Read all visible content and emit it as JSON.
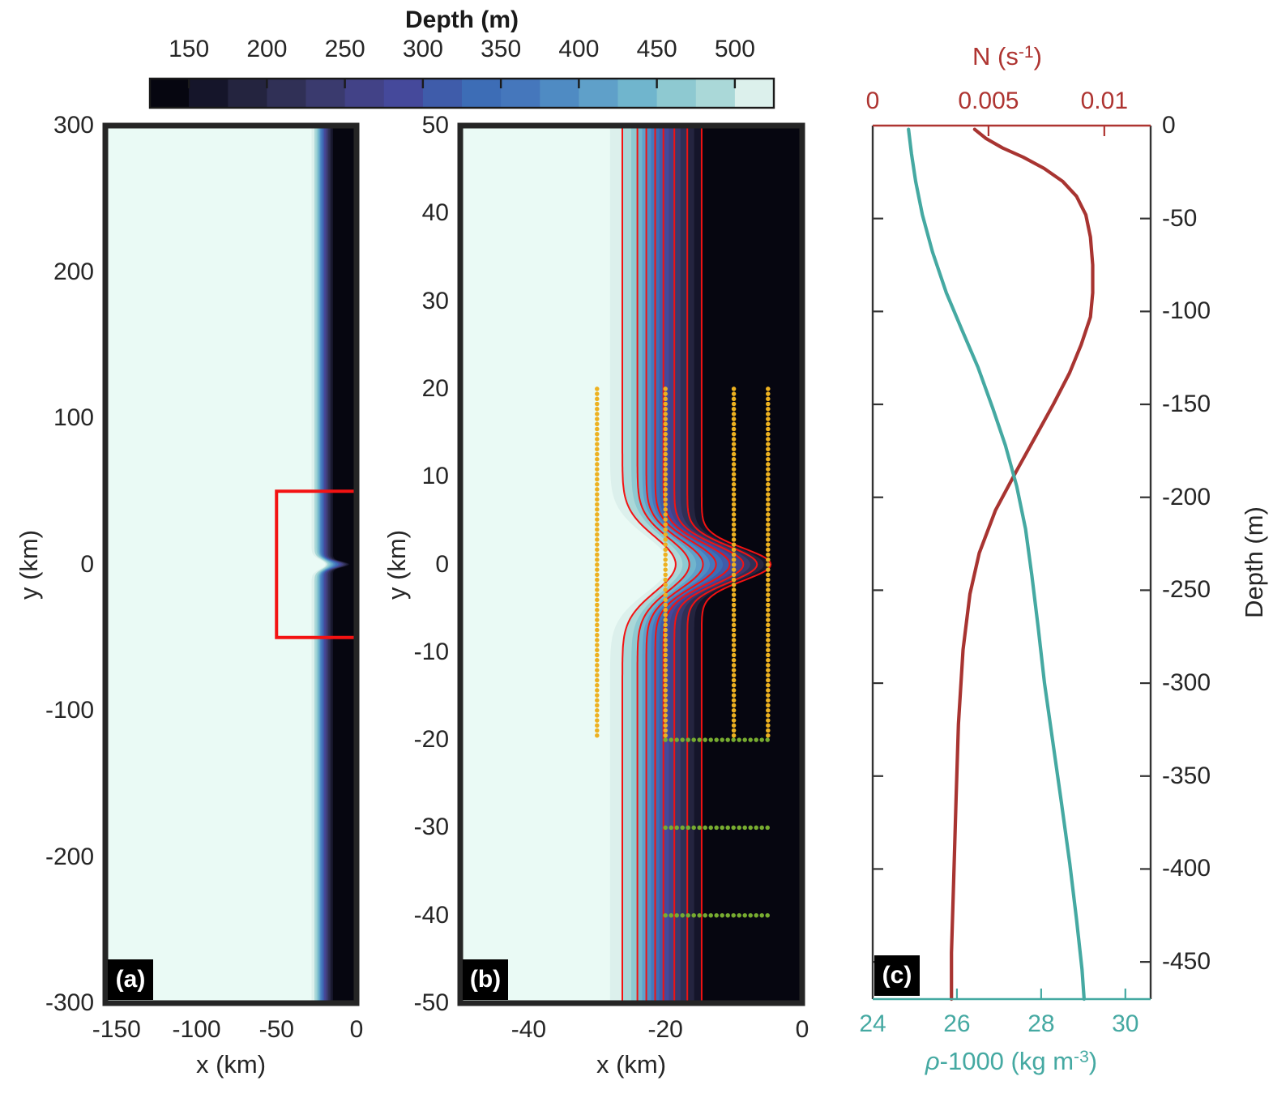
{
  "chart_data": [
    {
      "id": "colorbar",
      "type": "colorbar",
      "title": "Depth (m)",
      "ticks": [
        150,
        200,
        250,
        300,
        350,
        400,
        450,
        500
      ],
      "range": [
        125,
        525
      ],
      "orientation": "horizontal",
      "note": "discrete 16-band colormap, dark (deep) left to pale mint (shallow) right"
    },
    {
      "id": "panel_a",
      "type": "heatmap",
      "label": "(a)",
      "xlabel": "x (km)",
      "ylabel": "y (km)",
      "x_ticks": [
        -150,
        -100,
        -50,
        0
      ],
      "y_ticks": [
        300,
        200,
        100,
        0,
        -100,
        -200,
        -300
      ],
      "x_range": [
        -157,
        0
      ],
      "y_range": [
        -300,
        300
      ],
      "field": "seafloor depth: shallow pale shelf for x < -28 km, tanh-like slope to deep (dark) for x > -15 km, shallow canyon tongue protruding seaward at y = 0",
      "inset_rectangle": {
        "x": [
          -50,
          0
        ],
        "y": [
          -50,
          50
        ],
        "color": "#f31212"
      }
    },
    {
      "id": "panel_b",
      "type": "heatmap",
      "label": "(b)",
      "xlabel": "x (km)",
      "ylabel": "y (km)",
      "x_ticks": [
        -40,
        -20,
        0
      ],
      "y_ticks": [
        50,
        40,
        30,
        20,
        10,
        0,
        -10,
        -20,
        -30,
        -40,
        -50
      ],
      "x_range": [
        -50,
        0
      ],
      "y_range": [
        -50,
        50
      ],
      "contour_color": "#f31212",
      "red_contour_boundary_indices": [
        1,
        3,
        5,
        7,
        9,
        11,
        13,
        15
      ],
      "station_lines": {
        "orange_color": "#edb120",
        "green_color": "#77ac30",
        "orange_vertical": [
          {
            "x": -30,
            "y_from": 20,
            "y_to": -20
          },
          {
            "x": -20,
            "y_from": 20,
            "y_to": -20
          },
          {
            "x": -10,
            "y_from": 20,
            "y_to": -20
          },
          {
            "x": -5,
            "y_from": 20,
            "y_to": -20
          }
        ],
        "green_horizontal": [
          {
            "y": -20,
            "x_from": -20,
            "x_to": -5
          },
          {
            "y": -30,
            "x_from": -20,
            "x_to": -5
          },
          {
            "y": -40,
            "x_from": -20,
            "x_to": -5
          }
        ]
      }
    },
    {
      "id": "panel_c",
      "type": "line",
      "label": "(c)",
      "axes": {
        "top": {
          "label_base": "N (s",
          "label_sup": "-1",
          "label_close": ")",
          "color": "#ae3431",
          "ticks": [
            0,
            0.005,
            0.01
          ],
          "range": [
            0,
            0.012
          ]
        },
        "bottom": {
          "label_rho": "ρ",
          "label_base": "-1000 (kg m",
          "label_sup": "-3",
          "label_close": ")",
          "color": "#45a9a2",
          "ticks": [
            24,
            26,
            28,
            30
          ],
          "range": [
            24,
            30.6
          ]
        },
        "right": {
          "label": "Depth (m)",
          "color": "#262626",
          "ticks": [
            0,
            -50,
            -100,
            -150,
            -200,
            -250,
            -300,
            -350,
            -400,
            -450
          ],
          "range": [
            0,
            -470
          ]
        }
      },
      "series": [
        {
          "name": "N",
          "axis": "top",
          "color": "#a83431",
          "points": [
            [
              0.0044,
              -2
            ],
            [
              0.0049,
              -7
            ],
            [
              0.0056,
              -12
            ],
            [
              0.0065,
              -17
            ],
            [
              0.0074,
              -23
            ],
            [
              0.0082,
              -30
            ],
            [
              0.0088,
              -38
            ],
            [
              0.0092,
              -48
            ],
            [
              0.0094,
              -60
            ],
            [
              0.0095,
              -75
            ],
            [
              0.0095,
              -90
            ],
            [
              0.0094,
              -103
            ],
            [
              0.009,
              -118
            ],
            [
              0.0085,
              -133
            ],
            [
              0.0078,
              -150
            ],
            [
              0.007,
              -168
            ],
            [
              0.0062,
              -186
            ],
            [
              0.0053,
              -207
            ],
            [
              0.0046,
              -230
            ],
            [
              0.0042,
              -252
            ],
            [
              0.0039,
              -282
            ],
            [
              0.0037,
              -322
            ],
            [
              0.0036,
              -362
            ],
            [
              0.0035,
              -405
            ],
            [
              0.0034,
              -445
            ],
            [
              0.0034,
              -470
            ]
          ]
        },
        {
          "name": "rho-1000",
          "axis": "bottom",
          "color": "#45a9a2",
          "points": [
            [
              24.85,
              -2
            ],
            [
              24.92,
              -15
            ],
            [
              25.02,
              -30
            ],
            [
              25.18,
              -48
            ],
            [
              25.42,
              -68
            ],
            [
              25.75,
              -90
            ],
            [
              26.12,
              -110
            ],
            [
              26.5,
              -130
            ],
            [
              26.85,
              -152
            ],
            [
              27.15,
              -172
            ],
            [
              27.42,
              -194
            ],
            [
              27.63,
              -217
            ],
            [
              27.78,
              -242
            ],
            [
              27.93,
              -270
            ],
            [
              28.08,
              -300
            ],
            [
              28.28,
              -332
            ],
            [
              28.48,
              -364
            ],
            [
              28.68,
              -397
            ],
            [
              28.84,
              -427
            ],
            [
              28.97,
              -454
            ],
            [
              29.02,
              -470
            ]
          ]
        }
      ]
    }
  ],
  "bathymetry_model": {
    "colors_light_to_dark": [
      "#eafaf5",
      "#dcf0ec",
      "#aad8d8",
      "#8ec9d1",
      "#70b5cd",
      "#5fa0c9",
      "#4f8bc3",
      "#4577bc",
      "#3d6db6",
      "#3f5caa",
      "#45499b",
      "#424287",
      "#3a3a6e",
      "#303056",
      "#24243f",
      "#15152a",
      "#060610"
    ],
    "boundary_base_km": [
      -28.1,
      -26.3,
      -25.0,
      -24.1,
      -23.4,
      -22.8,
      -22.1,
      -21.5,
      -20.9,
      -20.3,
      -19.5,
      -18.7,
      -17.8,
      -16.8,
      -15.8,
      -14.7
    ],
    "bulge_amp_km": [
      8.6,
      7.8,
      7.5,
      7.6,
      7.9,
      8.3,
      8.6,
      8.9,
      9.3,
      9.7,
      9.9,
      10.1,
      10.2,
      10.2,
      10.2,
      10.1
    ],
    "bulge_sigma_km": [
      4.6,
      4.47,
      4.33,
      4.2,
      4.07,
      3.93,
      3.8,
      3.67,
      3.53,
      3.4,
      3.27,
      3.13,
      3.0,
      2.87,
      2.73,
      2.6
    ]
  }
}
